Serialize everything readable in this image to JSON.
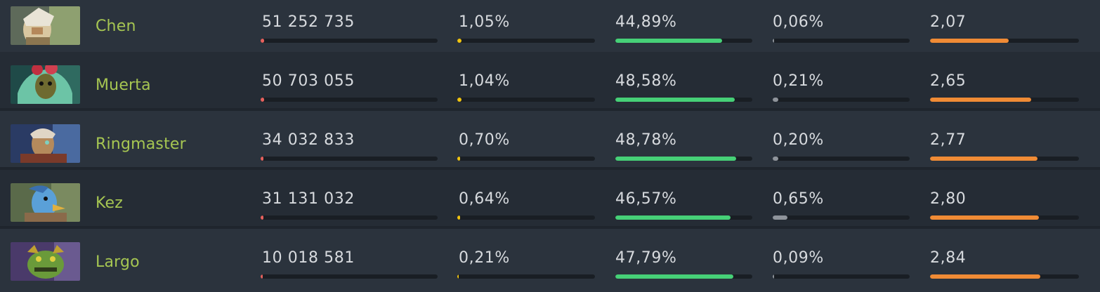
{
  "rows": [
    {
      "hero": "Chen",
      "avatar": "chen-portrait",
      "matches": "51 252 735",
      "matches_bar": 0.02,
      "pick": "1,05%",
      "pick_bar": 0.03,
      "win": "44,89%",
      "win_bar": 0.78,
      "ban": "0,06%",
      "ban_bar": 0.01,
      "kda": "2,07",
      "kda_bar": 0.53
    },
    {
      "hero": "Muerta",
      "avatar": "muerta-portrait",
      "matches": "50 703 055",
      "matches_bar": 0.02,
      "pick": "1,04%",
      "pick_bar": 0.03,
      "win": "48,58%",
      "win_bar": 0.87,
      "ban": "0,21%",
      "ban_bar": 0.04,
      "kda": "2,65",
      "kda_bar": 0.68
    },
    {
      "hero": "Ringmaster",
      "avatar": "ringmaster-portrait",
      "matches": "34 032 833",
      "matches_bar": 0.015,
      "pick": "0,70%",
      "pick_bar": 0.02,
      "win": "48,78%",
      "win_bar": 0.88,
      "ban": "0,20%",
      "ban_bar": 0.04,
      "kda": "2,77",
      "kda_bar": 0.72
    },
    {
      "hero": "Kez",
      "avatar": "kez-portrait",
      "matches": "31 131 032",
      "matches_bar": 0.015,
      "pick": "0,64%",
      "pick_bar": 0.02,
      "win": "46,57%",
      "win_bar": 0.84,
      "ban": "0,65%",
      "ban_bar": 0.11,
      "kda": "2,80",
      "kda_bar": 0.73
    },
    {
      "hero": "Largo",
      "avatar": "largo-portrait",
      "matches": "10 018 581",
      "matches_bar": 0.01,
      "pick": "0,21%",
      "pick_bar": 0.01,
      "win": "47,79%",
      "win_bar": 0.86,
      "ban": "0,09%",
      "ban_bar": 0.01,
      "kda": "2,84",
      "kda_bar": 0.74
    }
  ],
  "colors": {
    "hero_name": "#a6c652",
    "matches": "#e8615d",
    "pick": "#f1c40f",
    "win": "#46d077",
    "ban": "#8f949b",
    "kda": "#f08b35"
  }
}
